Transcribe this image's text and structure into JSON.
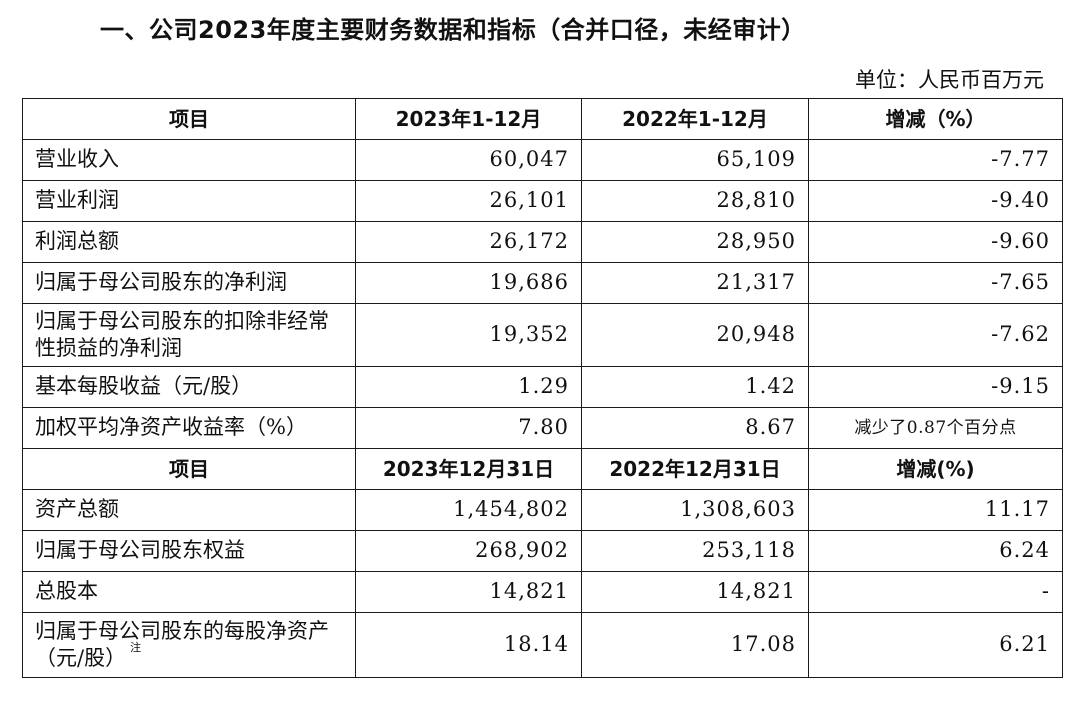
{
  "heading": "一、公司2023年度主要财务数据和指标（合并口径，未经审计）",
  "unit": "单位：人民币百万元",
  "section1": {
    "headers": [
      "项目",
      "2023年1-12月",
      "2022年1-12月",
      "增减（%）"
    ],
    "rows": [
      {
        "item": "营业收入",
        "v2023": "60,047",
        "v2022": "65,109",
        "change": "-7.77"
      },
      {
        "item": "营业利润",
        "v2023": "26,101",
        "v2022": "28,810",
        "change": "-9.40"
      },
      {
        "item": "利润总额",
        "v2023": "26,172",
        "v2022": "28,950",
        "change": "-9.60"
      },
      {
        "item": "归属于母公司股东的净利润",
        "v2023": "19,686",
        "v2022": "21,317",
        "change": "-7.65"
      },
      {
        "item": "归属于母公司股东的扣除非经常性损益的净利润",
        "v2023": "19,352",
        "v2022": "20,948",
        "change": "-7.62"
      },
      {
        "item": "基本每股收益（元/股）",
        "v2023": "1.29",
        "v2022": "1.42",
        "change": "-9.15"
      },
      {
        "item": "加权平均净资产收益率（%）",
        "v2023": "7.80",
        "v2022": "8.67",
        "change": "减少了0.87个百分点"
      }
    ]
  },
  "section2": {
    "headers": [
      "项目",
      "2023年12月31日",
      "2022年12月31日",
      "增减(%)"
    ],
    "rows": [
      {
        "item": "资产总额",
        "v2023": "1,454,802",
        "v2022": "1,308,603",
        "change": "11.17"
      },
      {
        "item": "归属于母公司股东权益",
        "v2023": "268,902",
        "v2022": "253,118",
        "change": "6.24"
      },
      {
        "item": "总股本",
        "v2023": "14,821",
        "v2022": "14,821",
        "change": "-"
      },
      {
        "item": "归属于母公司股东的每股净资产（元/股）",
        "v2023": "18.14",
        "v2022": "17.08",
        "change": "6.21",
        "footnote": "注"
      }
    ]
  }
}
